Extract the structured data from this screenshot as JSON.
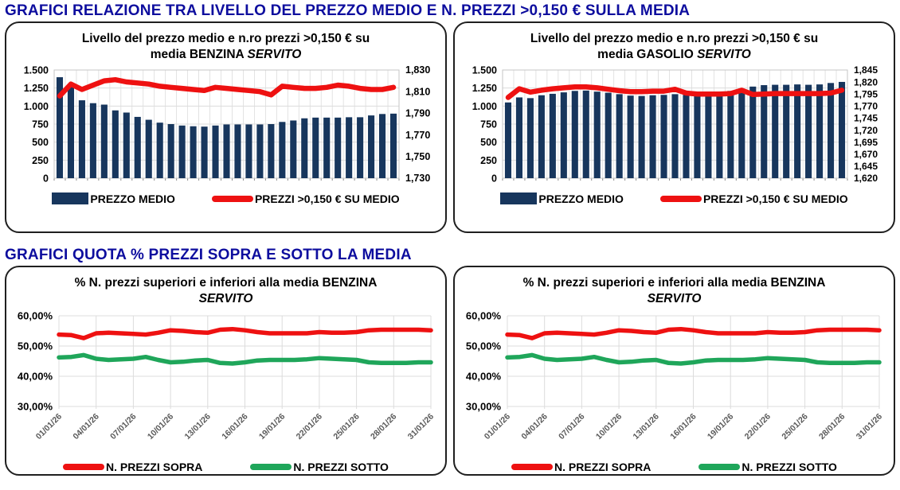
{
  "sections": [
    {
      "heading": "GRAFICI RELAZIONE TRA LIVELLO DEL PREZZO MEDIO E N. PREZZI >0,150 € SULLA MEDIA"
    },
    {
      "heading": "GRAFICI QUOTA % PREZZI SOPRA E SOTTO LA MEDIA"
    }
  ],
  "colors": {
    "heading_blue": "#0d0d9e",
    "bar_navy": "#17365d",
    "line_red": "#ee1111",
    "line_green": "#1fa65a",
    "gridline": "#dcdcdc",
    "plot_border": "#c6c6c6",
    "date_label": "#595959"
  },
  "chart_data": [
    {
      "type": "bar+line",
      "title": {
        "line1": "Livello del prezzo medio e n.ro prezzi >0,150 € su",
        "line2": "media BENZINA ",
        "line2_italic": "SERVITO"
      },
      "left_axis": {
        "min": 0,
        "max": 1500,
        "ticks": [
          "1.500",
          "1.250",
          "1.000",
          "750",
          "500",
          "250",
          "0"
        ]
      },
      "right_axis": {
        "min": 1730,
        "max": 1830,
        "ticks": [
          "1,830",
          "1,810",
          "1,790",
          "1,770",
          "1,750",
          "1,730"
        ]
      },
      "bars": {
        "name": "PREZZO MEDIO",
        "color": "#17365d",
        "values": [
          1400,
          1270,
          1080,
          1040,
          1020,
          940,
          910,
          850,
          810,
          770,
          750,
          730,
          720,
          715,
          730,
          745,
          745,
          745,
          745,
          750,
          780,
          800,
          830,
          840,
          840,
          840,
          845,
          845,
          870,
          890,
          895
        ]
      },
      "line": {
        "name": "PREZZI >0,150 € SU MEDIO",
        "color": "#ee1111",
        "values": [
          1806,
          1817,
          1812,
          1816,
          1820,
          1821,
          1819,
          1818,
          1817,
          1815,
          1814,
          1813,
          1812,
          1811,
          1814,
          1813,
          1812,
          1811,
          1810,
          1807,
          1815,
          1814,
          1813,
          1813,
          1814,
          1816,
          1815,
          1813,
          1812,
          1812,
          1814
        ]
      }
    },
    {
      "type": "bar+line",
      "title": {
        "line1": "Livello del prezzo medio e n.ro prezzi >0,150 € su",
        "line2": "media GASOLIO ",
        "line2_italic": "SERVITO"
      },
      "left_axis": {
        "min": 0,
        "max": 1500,
        "ticks": [
          "1.500",
          "1.250",
          "1.000",
          "750",
          "500",
          "250",
          "0"
        ]
      },
      "right_axis": {
        "min": 1620,
        "max": 1845,
        "ticks": [
          "1,845",
          "1,820",
          "1,795",
          "1,770",
          "1,745",
          "1,720",
          "1,695",
          "1,670",
          "1,645",
          "1,620"
        ]
      },
      "bars": {
        "name": "PREZZO MEDIO",
        "color": "#17365d",
        "values": [
          1050,
          1120,
          1110,
          1150,
          1170,
          1190,
          1210,
          1215,
          1200,
          1185,
          1165,
          1145,
          1140,
          1150,
          1155,
          1165,
          1155,
          1145,
          1150,
          1160,
          1210,
          1240,
          1270,
          1290,
          1295,
          1295,
          1300,
          1295,
          1300,
          1320,
          1335
        ]
      },
      "line": {
        "name": "PREZZI >0,150 € SU MEDIO",
        "color": "#ee1111",
        "values": [
          1788,
          1806,
          1799,
          1803,
          1806,
          1808,
          1810,
          1810,
          1808,
          1805,
          1802,
          1800,
          1800,
          1801,
          1801,
          1805,
          1797,
          1795,
          1795,
          1795,
          1796,
          1803,
          1794,
          1795,
          1796,
          1796,
          1796,
          1796,
          1796,
          1797,
          1803
        ]
      }
    },
    {
      "type": "line",
      "title": {
        "line1": "% N. prezzi superiori e inferiori alla media BENZINA",
        "line2": "",
        "line2_italic": "SERVITO"
      },
      "y_axis": {
        "min": 30,
        "max": 60,
        "ticks": [
          "60,00%",
          "50,00%",
          "40,00%",
          "30,00%"
        ]
      },
      "x_tick_labels": [
        "01/01/26",
        "04/01/26",
        "07/01/26",
        "10/01/26",
        "13/01/26",
        "16/01/26",
        "19/01/26",
        "22/01/26",
        "25/01/26",
        "28/01/26",
        "31/01/26"
      ],
      "series": [
        {
          "name": "N. PREZZI SOPRA",
          "color": "#ee1111",
          "values": [
            53.8,
            53.6,
            52.6,
            54.2,
            54.4,
            54.2,
            54.0,
            53.8,
            54.4,
            55.2,
            55.0,
            54.6,
            54.4,
            55.4,
            55.6,
            55.2,
            54.6,
            54.2,
            54.2,
            54.2,
            54.2,
            54.6,
            54.4,
            54.4,
            54.6,
            55.2,
            55.4,
            55.4,
            55.4,
            55.4,
            55.2
          ]
        },
        {
          "name": "N. PREZZI SOTTO",
          "color": "#1fa65a",
          "values": [
            46.2,
            46.4,
            47.0,
            45.8,
            45.4,
            45.6,
            45.8,
            46.4,
            45.4,
            44.6,
            44.8,
            45.2,
            45.4,
            44.4,
            44.2,
            44.6,
            45.2,
            45.4,
            45.4,
            45.4,
            45.6,
            46.0,
            45.8,
            45.6,
            45.4,
            44.6,
            44.4,
            44.4,
            44.4,
            44.6,
            44.6
          ]
        }
      ]
    },
    {
      "type": "line",
      "title": {
        "line1": "% N. prezzi superiori e inferiori alla media BENZINA",
        "line2": "",
        "line2_italic": "SERVITO"
      },
      "y_axis": {
        "min": 30,
        "max": 60,
        "ticks": [
          "60,00%",
          "50,00%",
          "40,00%",
          "30,00%"
        ]
      },
      "x_tick_labels": [
        "01/01/26",
        "04/01/26",
        "07/01/26",
        "10/01/26",
        "13/01/26",
        "16/01/26",
        "19/01/26",
        "22/01/26",
        "25/01/26",
        "28/01/26",
        "31/01/26"
      ],
      "series": [
        {
          "name": "N. PREZZI SOPRA",
          "color": "#ee1111",
          "values": [
            53.8,
            53.6,
            52.6,
            54.2,
            54.4,
            54.2,
            54.0,
            53.8,
            54.4,
            55.2,
            55.0,
            54.6,
            54.4,
            55.4,
            55.6,
            55.2,
            54.6,
            54.2,
            54.2,
            54.2,
            54.2,
            54.6,
            54.4,
            54.4,
            54.6,
            55.2,
            55.4,
            55.4,
            55.4,
            55.4,
            55.2
          ]
        },
        {
          "name": "N. PREZZI SOTTO",
          "color": "#1fa65a",
          "values": [
            46.2,
            46.4,
            47.0,
            45.8,
            45.4,
            45.6,
            45.8,
            46.4,
            45.4,
            44.6,
            44.8,
            45.2,
            45.4,
            44.4,
            44.2,
            44.6,
            45.2,
            45.4,
            45.4,
            45.4,
            45.6,
            46.0,
            45.8,
            45.6,
            45.4,
            44.6,
            44.4,
            44.4,
            44.4,
            44.6,
            44.6
          ]
        }
      ]
    }
  ]
}
